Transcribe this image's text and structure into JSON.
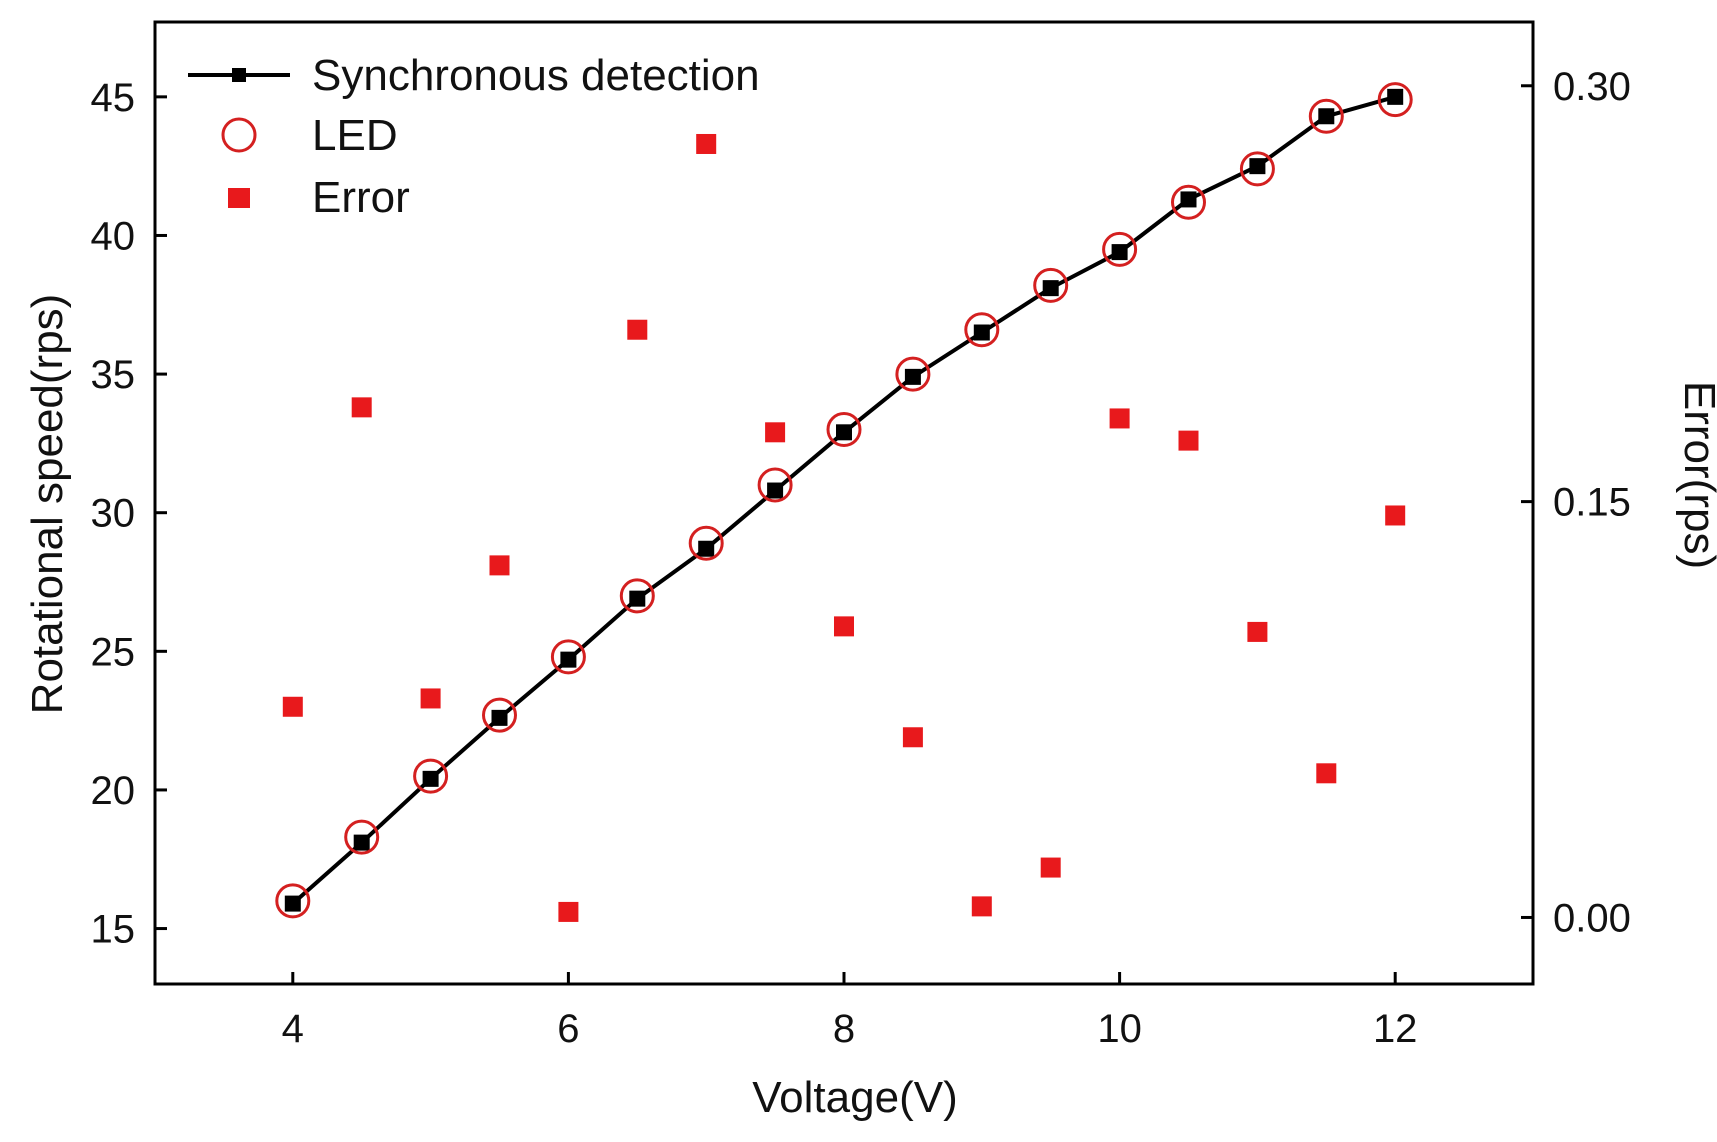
{
  "chart_data": {
    "type": "line",
    "title": "",
    "xlabel": "Voltage(V)",
    "ylabel": "Rotational speed(rps)",
    "y2label": "Error(rps)",
    "xlim": [
      3,
      13
    ],
    "ylim": [
      13,
      47.7
    ],
    "y2lim": [
      -0.024,
      0.323
    ],
    "xticks": [
      4,
      6,
      8,
      10,
      12
    ],
    "yticks": [
      15,
      20,
      25,
      30,
      35,
      40,
      45
    ],
    "y2ticks": [
      0.0,
      0.15,
      0.3
    ],
    "y2tick_labels": [
      "0.00",
      "0.15",
      "0.30"
    ],
    "grid": false,
    "legend_position": "top-left",
    "x": [
      4,
      4.5,
      5,
      5.5,
      6,
      6.5,
      7,
      7.5,
      8,
      8.5,
      9,
      9.5,
      10,
      10.5,
      11,
      11.5,
      12
    ],
    "series": [
      {
        "name": "Synchronous detection",
        "axis": "left",
        "style": "line-square",
        "color": "#000000",
        "values": [
          15.9,
          18.1,
          20.4,
          22.6,
          24.7,
          26.9,
          28.7,
          30.8,
          32.9,
          34.9,
          36.5,
          38.1,
          39.4,
          41.3,
          42.5,
          44.3,
          45.0
        ]
      },
      {
        "name": "LED",
        "axis": "left",
        "style": "open-circle",
        "color": "#d42020",
        "values": [
          16.0,
          18.3,
          20.5,
          22.7,
          24.8,
          27.0,
          28.9,
          31.0,
          33.0,
          35.0,
          36.6,
          38.2,
          39.5,
          41.2,
          42.4,
          44.3,
          44.9
        ]
      },
      {
        "name": "Error",
        "axis": "right",
        "style": "filled-square",
        "color": "#e8191c",
        "values": [
          0.076,
          0.184,
          0.079,
          0.127,
          0.002,
          0.212,
          0.279,
          0.175,
          0.105,
          0.065,
          0.004,
          0.018,
          0.18,
          0.172,
          0.103,
          0.052,
          0.145
        ]
      }
    ]
  }
}
